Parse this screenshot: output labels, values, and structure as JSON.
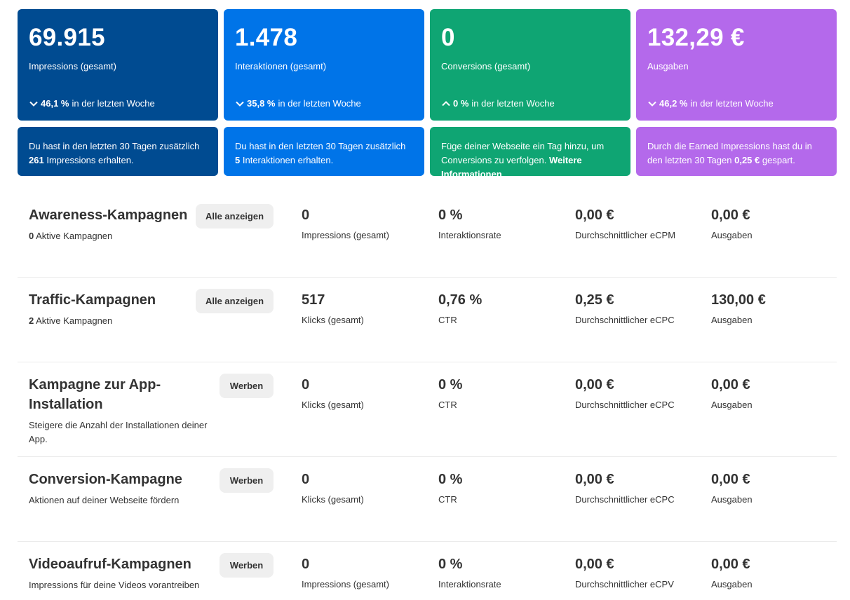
{
  "cards": [
    {
      "value": "69.915",
      "label": "Impressions (gesamt)",
      "trend_dir": "down",
      "trend_value": "46,1 %",
      "trend_text": "in der letzten Woche",
      "note_pre": "Du hast in den letzten 30 Tagen zusätzlich",
      "note_bold": "261",
      "note_post": "Impressions erhalten.",
      "color": "#004b91"
    },
    {
      "value": "1.478",
      "label": "Interaktionen (gesamt)",
      "trend_dir": "down",
      "trend_value": "35,8 %",
      "trend_text": "in der letzten Woche",
      "note_pre": "Du hast in den letzten 30 Tagen zusätzlich",
      "note_bold": "5",
      "note_post": "Interaktionen erhalten.",
      "color": "#0074e8"
    },
    {
      "value": "0",
      "label": "Conversions (gesamt)",
      "trend_dir": "up",
      "trend_value": "0 %",
      "trend_text": "in der letzten Woche",
      "note_pre": "Füge deiner Webseite ein Tag hinzu, um Conversions zu verfolgen.",
      "note_bold": "Weitere Informationen",
      "note_post": "",
      "color": "#0fa573"
    },
    {
      "value": "132,29 €",
      "label": "Ausgaben",
      "trend_dir": "down",
      "trend_value": "46,2 %",
      "trend_text": "in der letzten Woche",
      "note_pre": "Durch die Earned Impressions hast du in den letzten 30 Tagen",
      "note_bold": "0,25 €",
      "note_post": "gespart.",
      "color": "#b469eb"
    }
  ],
  "campaigns": [
    {
      "title": "Awareness-Kampagnen",
      "sub_bold": "0",
      "sub_text": "Aktive Kampagnen",
      "button": "Alle anzeigen",
      "metrics": [
        {
          "value": "0",
          "label": "Impressions (gesamt)"
        },
        {
          "value": "0 %",
          "label": "Interaktionsrate"
        },
        {
          "value": "0,00 €",
          "label": "Durchschnittlicher eCPM"
        },
        {
          "value": "0,00 €",
          "label": "Ausgaben"
        }
      ]
    },
    {
      "title": "Traffic-Kampagnen",
      "sub_bold": "2",
      "sub_text": "Aktive Kampagnen",
      "button": "Alle anzeigen",
      "metrics": [
        {
          "value": "517",
          "label": "Klicks (gesamt)"
        },
        {
          "value": "0,76 %",
          "label": "CTR"
        },
        {
          "value": "0,25 €",
          "label": "Durchschnittlicher eCPC"
        },
        {
          "value": "130,00 €",
          "label": "Ausgaben"
        }
      ]
    },
    {
      "title_line1": "Kampagne zur App-",
      "title_line2": "Installation",
      "sub_text": "Steigere die Anzahl der Installationen deiner App.",
      "button": "Werben",
      "metrics": [
        {
          "value": "0",
          "label": "Klicks (gesamt)"
        },
        {
          "value": "0 %",
          "label": "CTR"
        },
        {
          "value": "0,00 €",
          "label": "Durchschnittlicher eCPC"
        },
        {
          "value": "0,00 €",
          "label": "Ausgaben"
        }
      ]
    },
    {
      "title": "Conversion-Kampagne",
      "sub_text": "Aktionen auf deiner Webseite fördern",
      "button": "Werben",
      "metrics": [
        {
          "value": "0",
          "label": "Klicks (gesamt)"
        },
        {
          "value": "0 %",
          "label": "CTR"
        },
        {
          "value": "0,00 €",
          "label": "Durchschnittlicher eCPC"
        },
        {
          "value": "0,00 €",
          "label": "Ausgaben"
        }
      ]
    },
    {
      "title": "Videoaufruf-Kampagnen",
      "sub_text": "Impressions für deine Videos vorantreiben",
      "button": "Werben",
      "metrics": [
        {
          "value": "0",
          "label": "Impressions (gesamt)"
        },
        {
          "value": "0 %",
          "label": "Interaktionsrate"
        },
        {
          "value": "0,00 €",
          "label": "Durchschnittlicher eCPV"
        },
        {
          "value": "0,00 €",
          "label": "Ausgaben"
        }
      ]
    }
  ],
  "icons": {
    "down": "chevron-down-icon",
    "up": "chevron-up-icon"
  }
}
